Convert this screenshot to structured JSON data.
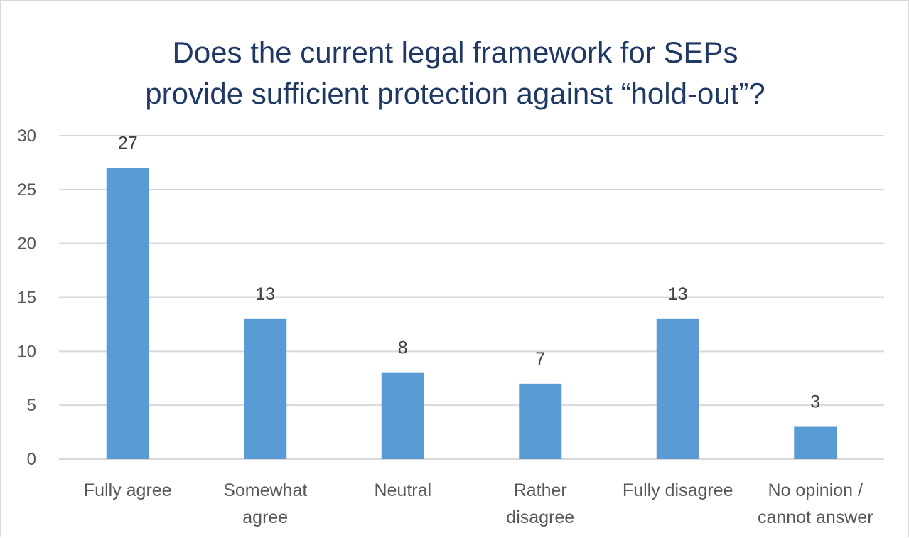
{
  "chart_data": {
    "type": "bar",
    "title_lines": [
      "Does the current legal framework for SEPs",
      "provide sufficient protection against “hold-out”?"
    ],
    "categories": [
      [
        "Fully agree"
      ],
      [
        "Somewhat",
        "agree"
      ],
      [
        "Neutral"
      ],
      [
        "Rather",
        "disagree"
      ],
      [
        "Fully disagree"
      ],
      [
        "No opinion /",
        "cannot answer"
      ]
    ],
    "values": [
      27,
      13,
      8,
      7,
      13,
      3
    ],
    "ylim": [
      0,
      30
    ],
    "yticks": [
      0,
      5,
      10,
      15,
      20,
      25,
      30
    ],
    "grid": true,
    "legend": "none",
    "data_labels": true,
    "colors": {
      "bar": "#5b9bd5",
      "grid": "#d9d9d9",
      "title": "#1f3864"
    }
  }
}
